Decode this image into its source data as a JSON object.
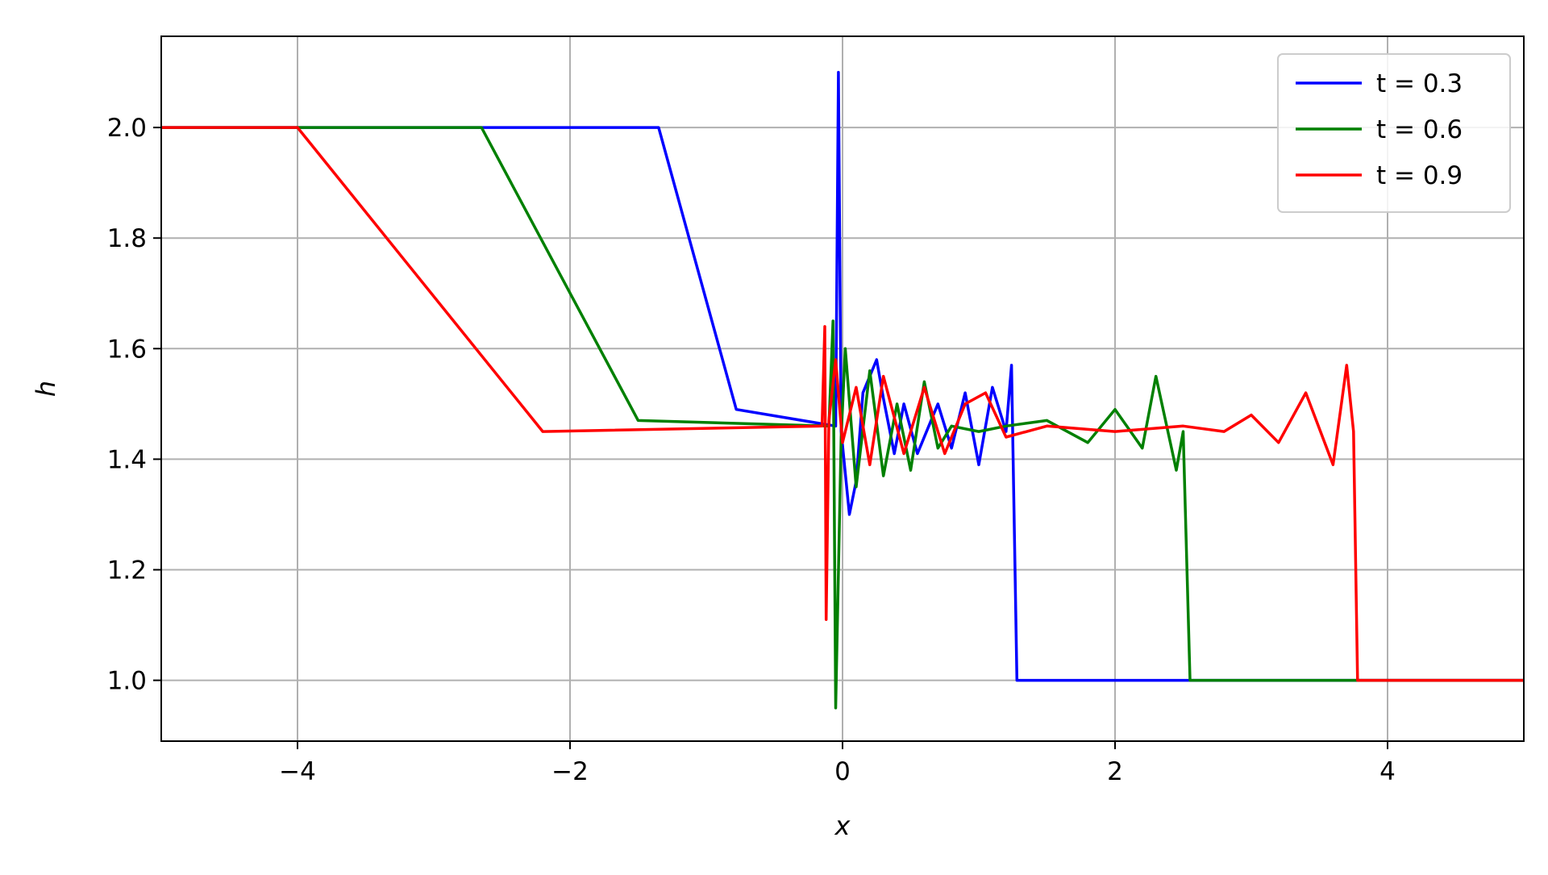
{
  "chart_data": {
    "type": "line",
    "title": "",
    "xlabel": "x",
    "ylabel": "h",
    "xlim": [
      -5,
      5
    ],
    "ylim": [
      0.89,
      2.165
    ],
    "grid": true,
    "legend_position": "top-right",
    "x_ticks": [
      -4,
      -2,
      0,
      2,
      4
    ],
    "x_tick_labels": [
      "−4",
      "−2",
      "0",
      "2",
      "4"
    ],
    "y_ticks": [
      1.0,
      1.2,
      1.4,
      1.6,
      1.8,
      2.0
    ],
    "y_tick_labels": [
      "1.0",
      "1.2",
      "1.4",
      "1.6",
      "1.8",
      "2.0"
    ],
    "series": [
      {
        "name": "t = 0.3",
        "color": "#0000ff",
        "x": [
          -5,
          -1.35,
          -0.78,
          -0.05,
          -0.03,
          -0.01,
          0.05,
          0.1,
          0.15,
          0.25,
          0.3,
          0.38,
          0.45,
          0.55,
          0.7,
          0.8,
          0.9,
          1.0,
          1.1,
          1.2,
          1.24,
          1.28,
          1.5,
          2.0,
          2.5,
          5
        ],
        "y": [
          2.0,
          2.0,
          1.49,
          1.46,
          2.1,
          1.45,
          1.3,
          1.36,
          1.52,
          1.58,
          1.51,
          1.41,
          1.5,
          1.41,
          1.5,
          1.42,
          1.52,
          1.39,
          1.53,
          1.45,
          1.57,
          1.0,
          1.0,
          1.0,
          1.0,
          1.0
        ]
      },
      {
        "name": "t = 0.6",
        "color": "#008000",
        "x": [
          -5,
          -2.65,
          -1.5,
          -0.1,
          -0.07,
          -0.05,
          -0.01,
          0.02,
          0.1,
          0.2,
          0.3,
          0.4,
          0.5,
          0.6,
          0.7,
          0.8,
          1.0,
          1.2,
          1.5,
          1.8,
          2.0,
          2.2,
          2.3,
          2.45,
          2.5,
          2.55,
          3.0,
          5
        ],
        "y": [
          2.0,
          2.0,
          1.47,
          1.46,
          1.65,
          0.95,
          1.44,
          1.6,
          1.35,
          1.56,
          1.37,
          1.5,
          1.38,
          1.54,
          1.42,
          1.46,
          1.45,
          1.46,
          1.47,
          1.43,
          1.49,
          1.42,
          1.55,
          1.38,
          1.45,
          1.0,
          1.0,
          1.0
        ]
      },
      {
        "name": "t = 0.9",
        "color": "#ff0000",
        "x": [
          -5,
          -4.0,
          -2.2,
          -0.15,
          -0.13,
          -0.12,
          -0.1,
          -0.05,
          0.0,
          0.1,
          0.2,
          0.3,
          0.45,
          0.6,
          0.75,
          0.9,
          1.05,
          1.2,
          1.5,
          2.0,
          2.5,
          2.8,
          3.0,
          3.2,
          3.4,
          3.6,
          3.7,
          3.75,
          3.78,
          5
        ],
        "y": [
          2.0,
          2.0,
          1.45,
          1.46,
          1.64,
          1.11,
          1.47,
          1.58,
          1.43,
          1.53,
          1.39,
          1.55,
          1.41,
          1.53,
          1.41,
          1.5,
          1.52,
          1.44,
          1.46,
          1.45,
          1.46,
          1.45,
          1.48,
          1.43,
          1.52,
          1.39,
          1.57,
          1.45,
          1.0,
          1.0
        ]
      }
    ]
  }
}
